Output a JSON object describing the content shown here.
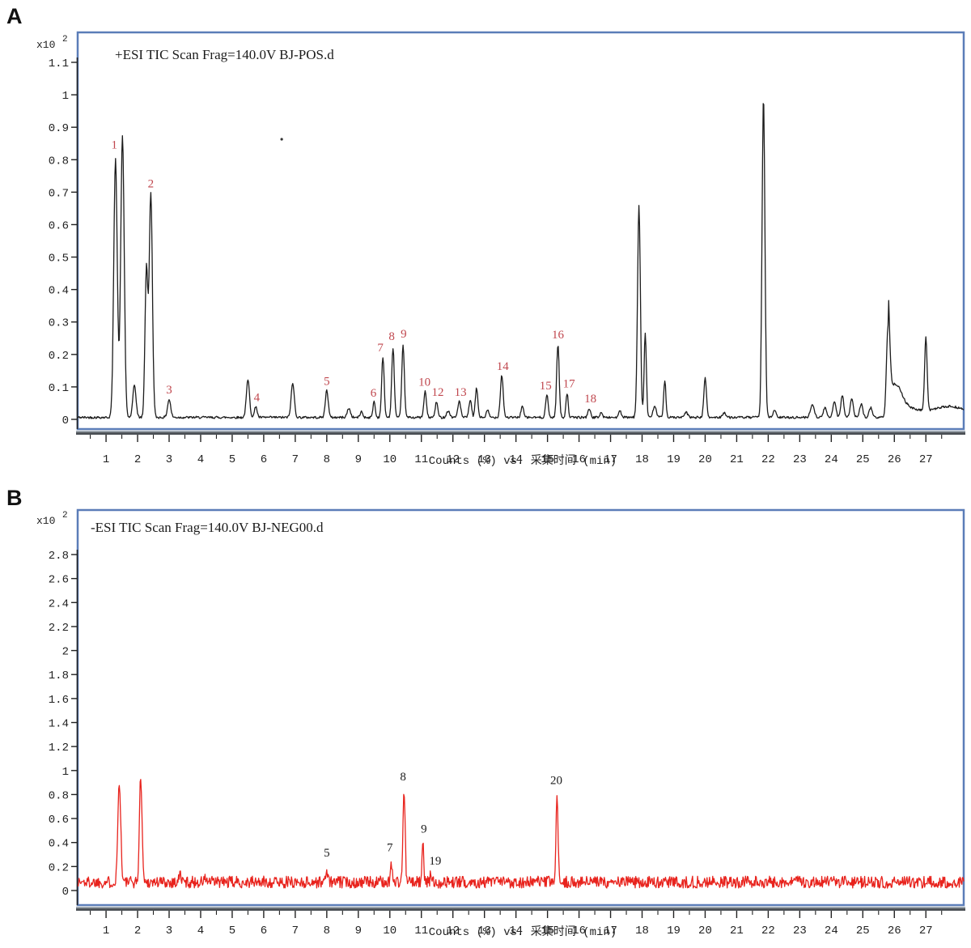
{
  "page": {
    "panel_a_letter": "A",
    "panel_b_letter": "B"
  },
  "chart_data": [
    {
      "type": "line",
      "panel": "A",
      "panel_label": "A",
      "title": "+ESI TIC Scan Frag=140.0V BJ-POS.d",
      "y_scale_label": "x10",
      "y_scale_exponent": "2",
      "x_label": "Counts (%) vs. 采集时间 (min)",
      "x_unit": "min",
      "xlim": [
        0.1,
        28.2
      ],
      "ylim": [
        0,
        1.1
      ],
      "grid": false,
      "legend": false,
      "trace_color": "#1c1c1c",
      "label_color": "#c0474e",
      "frame_color": "#5b7db8",
      "baseline": 0.006,
      "noise": 0.0035,
      "seed": 42,
      "x_ticks": [
        1,
        2,
        3,
        4,
        5,
        6,
        7,
        8,
        9,
        10,
        11,
        12,
        13,
        14,
        15,
        16,
        17,
        18,
        19,
        20,
        21,
        22,
        23,
        24,
        25,
        26,
        27
      ],
      "y_ticks": [
        {
          "v": 1.1,
          "label": "1.1"
        },
        {
          "v": 1.0,
          "label": "1"
        },
        {
          "v": 0.9,
          "label": "0.9"
        },
        {
          "v": 0.8,
          "label": "0.8"
        },
        {
          "v": 0.7,
          "label": "0.7"
        },
        {
          "v": 0.6,
          "label": "0.6"
        },
        {
          "v": 0.5,
          "label": "0.5"
        },
        {
          "v": 0.4,
          "label": "0.4"
        },
        {
          "v": 0.3,
          "label": "0.3"
        },
        {
          "v": 0.2,
          "label": "0.2"
        },
        {
          "v": 0.1,
          "label": "0.1"
        },
        {
          "v": 0,
          "label": "0"
        }
      ],
      "peaks": [
        {
          "t": 1.3,
          "h": 0.8,
          "w": 0.055,
          "label": "1"
        },
        {
          "t": 1.52,
          "h": 0.87,
          "w": 0.055
        },
        {
          "t": 1.9,
          "h": 0.1,
          "w": 0.05
        },
        {
          "t": 2.28,
          "h": 0.46,
          "w": 0.045
        },
        {
          "t": 2.42,
          "h": 0.69,
          "w": 0.05,
          "label": "2"
        },
        {
          "t": 3.0,
          "h": 0.055,
          "w": 0.05,
          "label": "3"
        },
        {
          "t": 5.5,
          "h": 0.115,
          "w": 0.05
        },
        {
          "t": 5.75,
          "h": 0.035,
          "w": 0.04,
          "label": "4"
        },
        {
          "t": 6.92,
          "h": 0.105,
          "w": 0.05
        },
        {
          "t": 8.0,
          "h": 0.085,
          "w": 0.045,
          "label": "5"
        },
        {
          "t": 8.7,
          "h": 0.028,
          "w": 0.05
        },
        {
          "t": 9.1,
          "h": 0.018,
          "w": 0.04
        },
        {
          "t": 9.5,
          "h": 0.05,
          "w": 0.035,
          "label": "6"
        },
        {
          "t": 9.78,
          "h": 0.185,
          "w": 0.04,
          "label": "7"
        },
        {
          "t": 10.1,
          "h": 0.215,
          "w": 0.04,
          "label": "8"
        },
        {
          "t": 10.42,
          "h": 0.225,
          "w": 0.04,
          "label": "9"
        },
        {
          "t": 11.12,
          "h": 0.08,
          "w": 0.04,
          "label": "10"
        },
        {
          "t": 11.48,
          "h": 0.048,
          "w": 0.04,
          "label": "12"
        },
        {
          "t": 11.85,
          "h": 0.02,
          "w": 0.05
        },
        {
          "t": 12.2,
          "h": 0.05,
          "w": 0.045,
          "label": "13"
        },
        {
          "t": 12.55,
          "h": 0.055,
          "w": 0.04
        },
        {
          "t": 12.75,
          "h": 0.09,
          "w": 0.04
        },
        {
          "t": 13.1,
          "h": 0.022,
          "w": 0.04
        },
        {
          "t": 13.55,
          "h": 0.13,
          "w": 0.045,
          "label": "14"
        },
        {
          "t": 14.2,
          "h": 0.035,
          "w": 0.04
        },
        {
          "t": 14.98,
          "h": 0.07,
          "w": 0.04,
          "label": "15"
        },
        {
          "t": 15.33,
          "h": 0.225,
          "w": 0.04,
          "label": "16"
        },
        {
          "t": 15.62,
          "h": 0.075,
          "w": 0.035,
          "label": "17"
        },
        {
          "t": 16.32,
          "h": 0.028,
          "w": 0.04,
          "label": "18"
        },
        {
          "t": 16.7,
          "h": 0.015,
          "w": 0.04
        },
        {
          "t": 17.3,
          "h": 0.02,
          "w": 0.04
        },
        {
          "t": 17.9,
          "h": 0.655,
          "w": 0.045
        },
        {
          "t": 18.1,
          "h": 0.26,
          "w": 0.035
        },
        {
          "t": 18.4,
          "h": 0.035,
          "w": 0.05
        },
        {
          "t": 18.72,
          "h": 0.115,
          "w": 0.035
        },
        {
          "t": 19.4,
          "h": 0.015,
          "w": 0.05
        },
        {
          "t": 20.0,
          "h": 0.125,
          "w": 0.04
        },
        {
          "t": 20.6,
          "h": 0.015,
          "w": 0.05
        },
        {
          "t": 21.85,
          "h": 0.99,
          "w": 0.045
        },
        {
          "t": 22.2,
          "h": 0.02,
          "w": 0.05
        },
        {
          "t": 23.4,
          "h": 0.04,
          "w": 0.06
        },
        {
          "t": 23.8,
          "h": 0.03,
          "w": 0.05
        },
        {
          "t": 24.1,
          "h": 0.05,
          "w": 0.05
        },
        {
          "t": 24.35,
          "h": 0.07,
          "w": 0.045
        },
        {
          "t": 24.65,
          "h": 0.055,
          "w": 0.05
        },
        {
          "t": 24.95,
          "h": 0.04,
          "w": 0.05
        },
        {
          "t": 25.25,
          "h": 0.03,
          "w": 0.05
        },
        {
          "t": 25.8,
          "h": 0.28,
          "w": 0.05,
          "tail": {
            "a": 0.35,
            "k": 0.6
          }
        },
        {
          "t": 26.1,
          "h": 0.04,
          "w": 0.15
        },
        {
          "t": 27.0,
          "h": 0.225,
          "w": 0.04
        },
        {
          "t": 27.8,
          "h": 0.03,
          "w": 0.5
        }
      ],
      "peak_labels": [
        {
          "label": "1",
          "x": 1.26,
          "y": 0.825
        },
        {
          "label": "2",
          "x": 2.42,
          "y": 0.705
        },
        {
          "label": "3",
          "x": 3.0,
          "y": 0.07
        },
        {
          "label": "4",
          "x": 5.78,
          "y": 0.046
        },
        {
          "label": "5",
          "x": 8.0,
          "y": 0.096
        },
        {
          "label": "6",
          "x": 9.48,
          "y": 0.06
        },
        {
          "label": "7",
          "x": 9.7,
          "y": 0.2
        },
        {
          "label": "8",
          "x": 10.06,
          "y": 0.235
        },
        {
          "label": "9",
          "x": 10.44,
          "y": 0.242
        },
        {
          "label": "10",
          "x": 11.1,
          "y": 0.094
        },
        {
          "label": "12",
          "x": 11.52,
          "y": 0.062
        },
        {
          "label": "13",
          "x": 12.24,
          "y": 0.062
        },
        {
          "label": "14",
          "x": 13.58,
          "y": 0.142
        },
        {
          "label": "15",
          "x": 14.94,
          "y": 0.082
        },
        {
          "label": "16",
          "x": 15.33,
          "y": 0.24
        },
        {
          "label": "17",
          "x": 15.68,
          "y": 0.088
        },
        {
          "label": "18",
          "x": 16.36,
          "y": 0.042
        }
      ],
      "artifact_dot": {
        "t": 6.57,
        "v": 0.863
      }
    },
    {
      "type": "line",
      "panel": "B",
      "panel_label": "B",
      "title": "-ESI TIC Scan Frag=140.0V BJ-NEG00.d",
      "y_scale_label": "x10",
      "y_scale_exponent": "2",
      "x_label": "Counts (%) vs. 采集时间 (min)",
      "x_unit": "min",
      "xlim": [
        0.1,
        28.2
      ],
      "ylim": [
        0,
        2.8
      ],
      "grid": false,
      "legend": false,
      "trace_color": "#e8231d",
      "label_color": "#1b1b1b",
      "frame_color": "#5b7db8",
      "baseline": 0.07,
      "noise": 0.05,
      "seed": 1337,
      "x_ticks": [
        1,
        2,
        3,
        4,
        5,
        6,
        7,
        8,
        9,
        10,
        11,
        12,
        13,
        14,
        15,
        16,
        17,
        18,
        19,
        20,
        21,
        22,
        23,
        24,
        25,
        26,
        27
      ],
      "y_ticks": [
        {
          "v": 2.8,
          "label": "2.8"
        },
        {
          "v": 2.6,
          "label": "2.6"
        },
        {
          "v": 2.4,
          "label": "2.4"
        },
        {
          "v": 2.2,
          "label": "2.2"
        },
        {
          "v": 2.0,
          "label": "2"
        },
        {
          "v": 1.8,
          "label": "1.8"
        },
        {
          "v": 1.6,
          "label": "1.6"
        },
        {
          "v": 1.4,
          "label": "1.4"
        },
        {
          "v": 1.2,
          "label": "1.2"
        },
        {
          "v": 1.0,
          "label": "1"
        },
        {
          "v": 0.8,
          "label": "0.8"
        },
        {
          "v": 0.6,
          "label": "0.6"
        },
        {
          "v": 0.4,
          "label": "0.4"
        },
        {
          "v": 0.2,
          "label": "0.2"
        },
        {
          "v": 0,
          "label": "0"
        }
      ],
      "peaks": [
        {
          "t": 1.42,
          "h": 0.85,
          "w": 0.045
        },
        {
          "t": 2.1,
          "h": 0.9,
          "w": 0.04
        },
        {
          "t": 3.35,
          "h": 0.06,
          "w": 0.04
        },
        {
          "t": 4.15,
          "h": 0.03,
          "w": 0.04
        },
        {
          "t": 8.0,
          "h": 0.11,
          "w": 0.03,
          "label": "5"
        },
        {
          "t": 10.05,
          "h": 0.16,
          "w": 0.028,
          "label": "7"
        },
        {
          "t": 10.45,
          "h": 0.75,
          "w": 0.035,
          "label": "8"
        },
        {
          "t": 11.05,
          "h": 0.3,
          "w": 0.028,
          "label": "9"
        },
        {
          "t": 11.3,
          "h": 0.08,
          "w": 0.022,
          "label": "19"
        },
        {
          "t": 15.3,
          "h": 0.7,
          "w": 0.032,
          "label": "20"
        }
      ],
      "peak_labels": [
        {
          "label": "5",
          "x": 8.0,
          "y": 0.255
        },
        {
          "label": "7",
          "x": 10.0,
          "y": 0.3
        },
        {
          "label": "8",
          "x": 10.42,
          "y": 0.89
        },
        {
          "label": "9",
          "x": 11.08,
          "y": 0.455
        },
        {
          "label": "19",
          "x": 11.44,
          "y": 0.19
        },
        {
          "label": "20",
          "x": 15.28,
          "y": 0.86
        }
      ]
    }
  ]
}
